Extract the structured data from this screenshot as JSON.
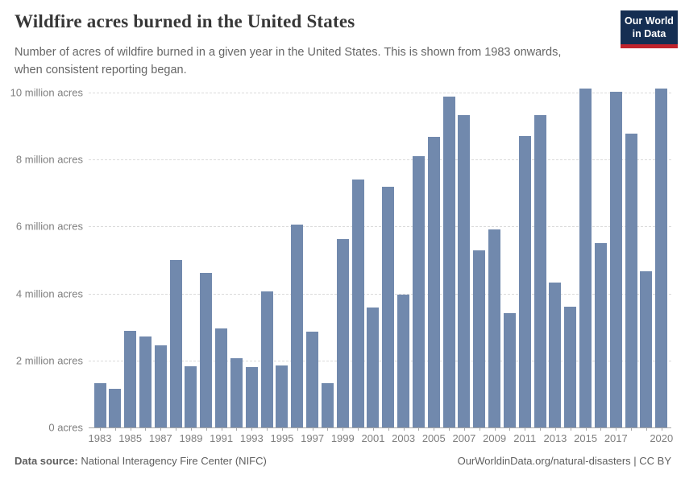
{
  "header": {
    "title": "Wildfire acres burned in the United States",
    "subtitle": "Number of acres of wildfire burned in a given year in the United States. This is shown from 1983 onwards, when consistent reporting began.",
    "logo": {
      "line1": "Our World",
      "line2": "in Data",
      "bg_color": "#152e52",
      "accent_color": "#c0232c"
    }
  },
  "chart_data": {
    "type": "bar",
    "title": "Wildfire acres burned in the United States",
    "xlabel": "",
    "ylabel": "acres",
    "unit": "acres",
    "grid": "horizontal-dashed",
    "legend": "none",
    "bar_color": "#7189ad",
    "ylim": [
      0,
      10500000
    ],
    "x": [
      1983,
      1984,
      1985,
      1986,
      1987,
      1988,
      1989,
      1990,
      1991,
      1992,
      1993,
      1994,
      1995,
      1996,
      1997,
      1998,
      1999,
      2000,
      2001,
      2002,
      2003,
      2004,
      2005,
      2006,
      2007,
      2008,
      2009,
      2010,
      2011,
      2012,
      2013,
      2014,
      2015,
      2016,
      2017,
      2018,
      2019,
      2020
    ],
    "values": [
      1323666,
      1148409,
      2896147,
      2719162,
      2447296,
      5009290,
      1827310,
      4621621,
      2953578,
      2069929,
      1797574,
      4073579,
      1840546,
      6065998,
      2856959,
      1329704,
      5626093,
      7393493,
      3570911,
      7184712,
      3960842,
      8097880,
      8689389,
      9873745,
      9328045,
      5292468,
      5921786,
      3422724,
      8711367,
      9326238,
      4319546,
      3595613,
      10125149,
      5509995,
      10026086,
      8767492,
      4664364,
      10122336
    ],
    "y_ticks": [
      {
        "value": 0,
        "label": "0 acres"
      },
      {
        "value": 2000000,
        "label": "2 million acres"
      },
      {
        "value": 4000000,
        "label": "4 million acres"
      },
      {
        "value": 6000000,
        "label": "6 million acres"
      },
      {
        "value": 8000000,
        "label": "8 million acres"
      },
      {
        "value": 10000000,
        "label": "10 million acres"
      }
    ],
    "x_labeled_years": [
      1983,
      1985,
      1987,
      1989,
      1991,
      1993,
      1995,
      1997,
      1999,
      2001,
      2003,
      2005,
      2007,
      2009,
      2011,
      2013,
      2015,
      2017,
      2020
    ]
  },
  "footer": {
    "datasource_label": "Data source:",
    "datasource_value": " National Interagency Fire Center (NIFC)",
    "credit_url": "OurWorldinData.org/natural-disasters",
    "credit_separator": " | ",
    "credit_license": "CC BY"
  }
}
